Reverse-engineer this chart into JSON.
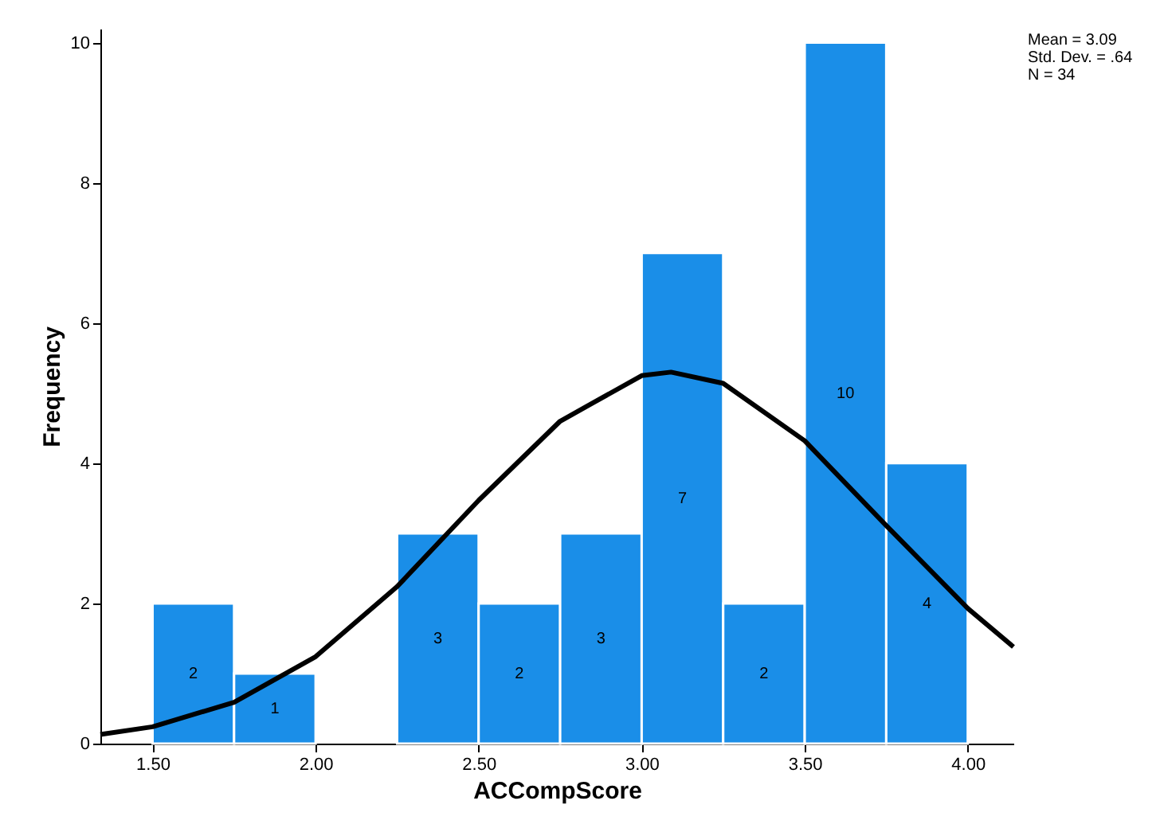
{
  "chart_data": {
    "type": "histogram",
    "xlabel": "ACCompScore",
    "ylabel": "Frequency",
    "bins": [
      1.5,
      1.75,
      2.0,
      2.25,
      2.5,
      2.75,
      3.0,
      3.25,
      3.5,
      3.75,
      4.0
    ],
    "values": [
      2,
      1,
      0,
      3,
      2,
      3,
      7,
      2,
      10,
      4
    ],
    "value_labels": [
      "2",
      "1",
      null,
      "3",
      "2",
      "3",
      "7",
      "2",
      "10",
      "4"
    ],
    "color": "#1a8ee8",
    "series": [
      {
        "type": "line",
        "color": "#000000",
        "x": [
          1.34,
          1.5,
          1.75,
          2.0,
          2.25,
          2.5,
          2.75,
          3.0,
          3.09,
          3.25,
          3.5,
          3.75,
          4.0,
          4.14
        ],
        "values": [
          0.13,
          0.24,
          0.59,
          1.24,
          2.24,
          3.47,
          4.6,
          5.25,
          5.3,
          5.14,
          4.32,
          3.11,
          1.93,
          1.38
        ]
      }
    ],
    "xlim": [
      1.34,
      4.14
    ],
    "ylim": [
      0,
      10.2
    ],
    "xticks": [
      {
        "value": 1.5,
        "label": "1.50"
      },
      {
        "value": 2.0,
        "label": "2.00"
      },
      {
        "value": 2.5,
        "label": "2.50"
      },
      {
        "value": 3.0,
        "label": "3.00"
      },
      {
        "value": 3.5,
        "label": "3.50"
      },
      {
        "value": 4.0,
        "label": "4.00"
      }
    ],
    "yticks": [
      0,
      2,
      4,
      6,
      8,
      10
    ],
    "grid": false,
    "annotations": [
      "Mean = 3.09",
      "Std. Dev. = .64",
      "N = 34"
    ]
  }
}
